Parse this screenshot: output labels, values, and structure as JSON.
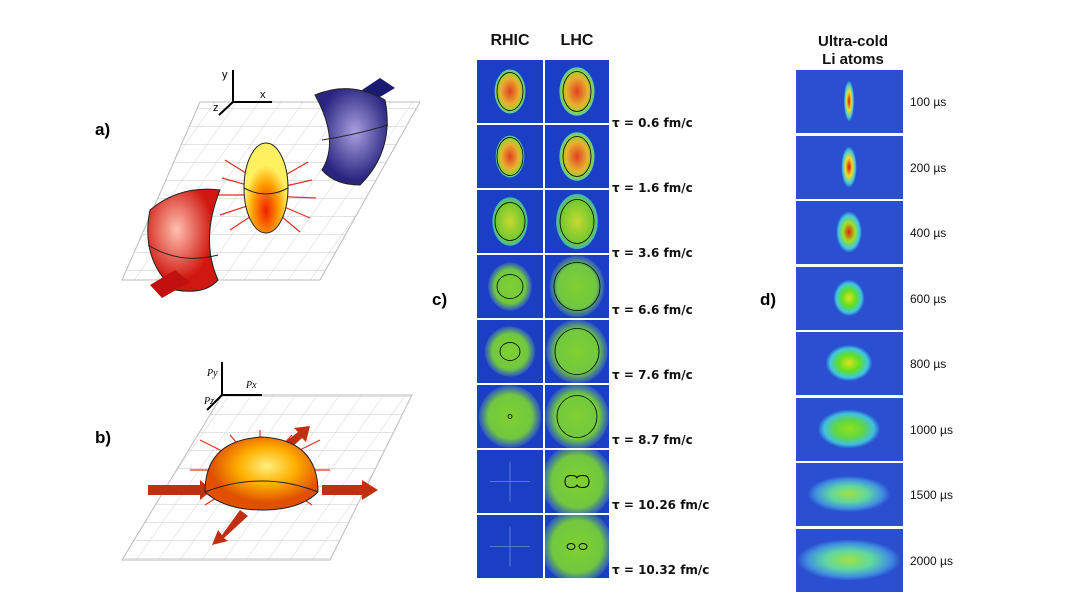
{
  "panel_a": {
    "label": "a)",
    "axes": {
      "y": "y",
      "x": "x",
      "z": "z"
    }
  },
  "panel_b": {
    "label": "b)",
    "axes": {
      "y": "Py",
      "x": "Px",
      "z": "Pz"
    }
  },
  "panel_c": {
    "label": "c)",
    "columns": [
      "RHIC",
      "LHC"
    ],
    "rows": [
      {
        "time": "τ = 0.6 fm/c"
      },
      {
        "time": "τ = 1.6 fm/c"
      },
      {
        "time": "τ = 3.6 fm/c"
      },
      {
        "time": "τ = 6.6 fm/c"
      },
      {
        "time": "τ = 7.6 fm/c"
      },
      {
        "time": "τ = 8.7 fm/c"
      },
      {
        "time": "τ = 10.26 fm/c"
      },
      {
        "time": "τ = 10.32 fm/c"
      }
    ]
  },
  "panel_d": {
    "label": "d)",
    "title_line1": "Ultra-cold",
    "title_line2": "Li atoms",
    "rows": [
      {
        "time": "100 µs"
      },
      {
        "time": "200 µs"
      },
      {
        "time": "400 µs"
      },
      {
        "time": "600 µs"
      },
      {
        "time": "800 µs"
      },
      {
        "time": "1000 µs"
      },
      {
        "time": "1500 µs"
      },
      {
        "time": "2000 µs"
      }
    ]
  },
  "colors": {
    "background": "#1a3ec4",
    "hot": "#e02010",
    "warm": "#f0d020",
    "green": "#60d020",
    "blue_nucleus": "#3a3590",
    "red_nucleus": "#e02a20"
  }
}
